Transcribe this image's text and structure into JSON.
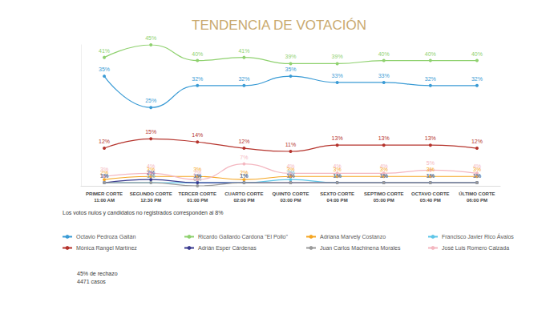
{
  "chart_data": {
    "type": "line",
    "title": "TENDENCIA DE VOTACIÓN",
    "categories": [
      "PRIMER CORTE\n11:00 AM",
      "SEGUNDO CORTE\n12:30 PM",
      "TERCER CORTE\n01:00 PM",
      "CUARTO CORTE\n02:00 PM",
      "QUINTO CORTE\n03:00 PM",
      "SEXTO CORTE\n04:00 PM",
      "SEPTIMO CORTE\n05:00 PM",
      "OCTAVO CORTE\n05:40 PM",
      "ÚLTIMO CORTE\n06:00 PM"
    ],
    "series": [
      {
        "name": "Octavio Pedroza Gaitán",
        "color": "#3a9bd5",
        "values": [
          35,
          25,
          32,
          32,
          35,
          33,
          33,
          32,
          32
        ],
        "value_labels": [
          "35%",
          "25%",
          "32%",
          "32%",
          "35%",
          "33%",
          "33%",
          "32%",
          "32%"
        ]
      },
      {
        "name": "Ricardo Gallardo Cardona \"El Pollo\"",
        "color": "#8fd16f",
        "values": [
          41,
          45,
          40,
          41,
          39,
          39,
          40,
          40,
          40
        ],
        "value_labels": [
          "41%",
          "45%",
          "40%",
          "41%",
          "39%",
          "39%",
          "40%",
          "40%",
          "40%"
        ]
      },
      {
        "name": "Adriana Marvely Costanzo",
        "color": "#f5a623",
        "values": [
          2,
          3,
          3,
          2,
          3,
          3,
          3,
          3,
          3
        ],
        "value_labels": [
          "2%",
          "3%",
          "3%",
          "2%",
          "3%",
          "3%",
          "3%",
          "3%",
          "3%"
        ]
      },
      {
        "name": "Francisco Javier Rico Ávalos",
        "color": "#5fc6e8",
        "values": [
          1,
          1,
          1,
          1,
          2,
          1,
          1,
          1,
          1
        ],
        "value_labels": [
          "1%",
          "1%",
          "1%",
          "1%",
          "2%",
          "1%",
          "1%",
          "1%",
          "1%"
        ]
      },
      {
        "name": "Mónica Rangel Martínez",
        "color": "#b5332c",
        "values": [
          12,
          15,
          14,
          12,
          11,
          13,
          13,
          13,
          12
        ],
        "value_labels": [
          "12%",
          "15%",
          "14%",
          "12%",
          "11%",
          "13%",
          "13%",
          "13%",
          "12%"
        ]
      },
      {
        "name": "Adrián Esper Cárdenas",
        "color": "#3b3b8f",
        "values": [
          1,
          2,
          1,
          1,
          1,
          1,
          1,
          1,
          1
        ],
        "value_labels": [
          "1%",
          "2%",
          "1%",
          "1%",
          "1%",
          "1%",
          "1%",
          "1%",
          "1%"
        ]
      },
      {
        "name": "Juan Carlos Machinena Morales",
        "color": "#9a9a9a",
        "values": [
          1,
          1,
          0,
          1,
          1,
          1,
          1,
          1,
          1
        ],
        "value_labels": [
          "1%",
          "1%",
          "0%",
          "1%",
          "1%",
          "1%",
          "1%",
          "1%",
          "1%"
        ]
      },
      {
        "name": "José Luis Romero Calzada",
        "color": "#f4b7c0",
        "values": [
          3,
          4,
          2,
          7,
          4,
          4,
          4,
          5,
          4
        ],
        "value_labels": [
          "3%",
          "4%",
          "2%",
          "7%",
          "4%",
          "4%",
          "4%",
          "5%",
          "4%"
        ]
      }
    ],
    "ylim": [
      0,
      45
    ],
    "tick_labels": "x",
    "grid": false,
    "legend": "bottom",
    "data_labels": true,
    "marker": "circle",
    "line_style": "solid",
    "annotations": [
      "Los votos nulos y candidatos no registrados corresponden al 8%",
      "45% de rechazo",
      "4471 casos"
    ]
  }
}
